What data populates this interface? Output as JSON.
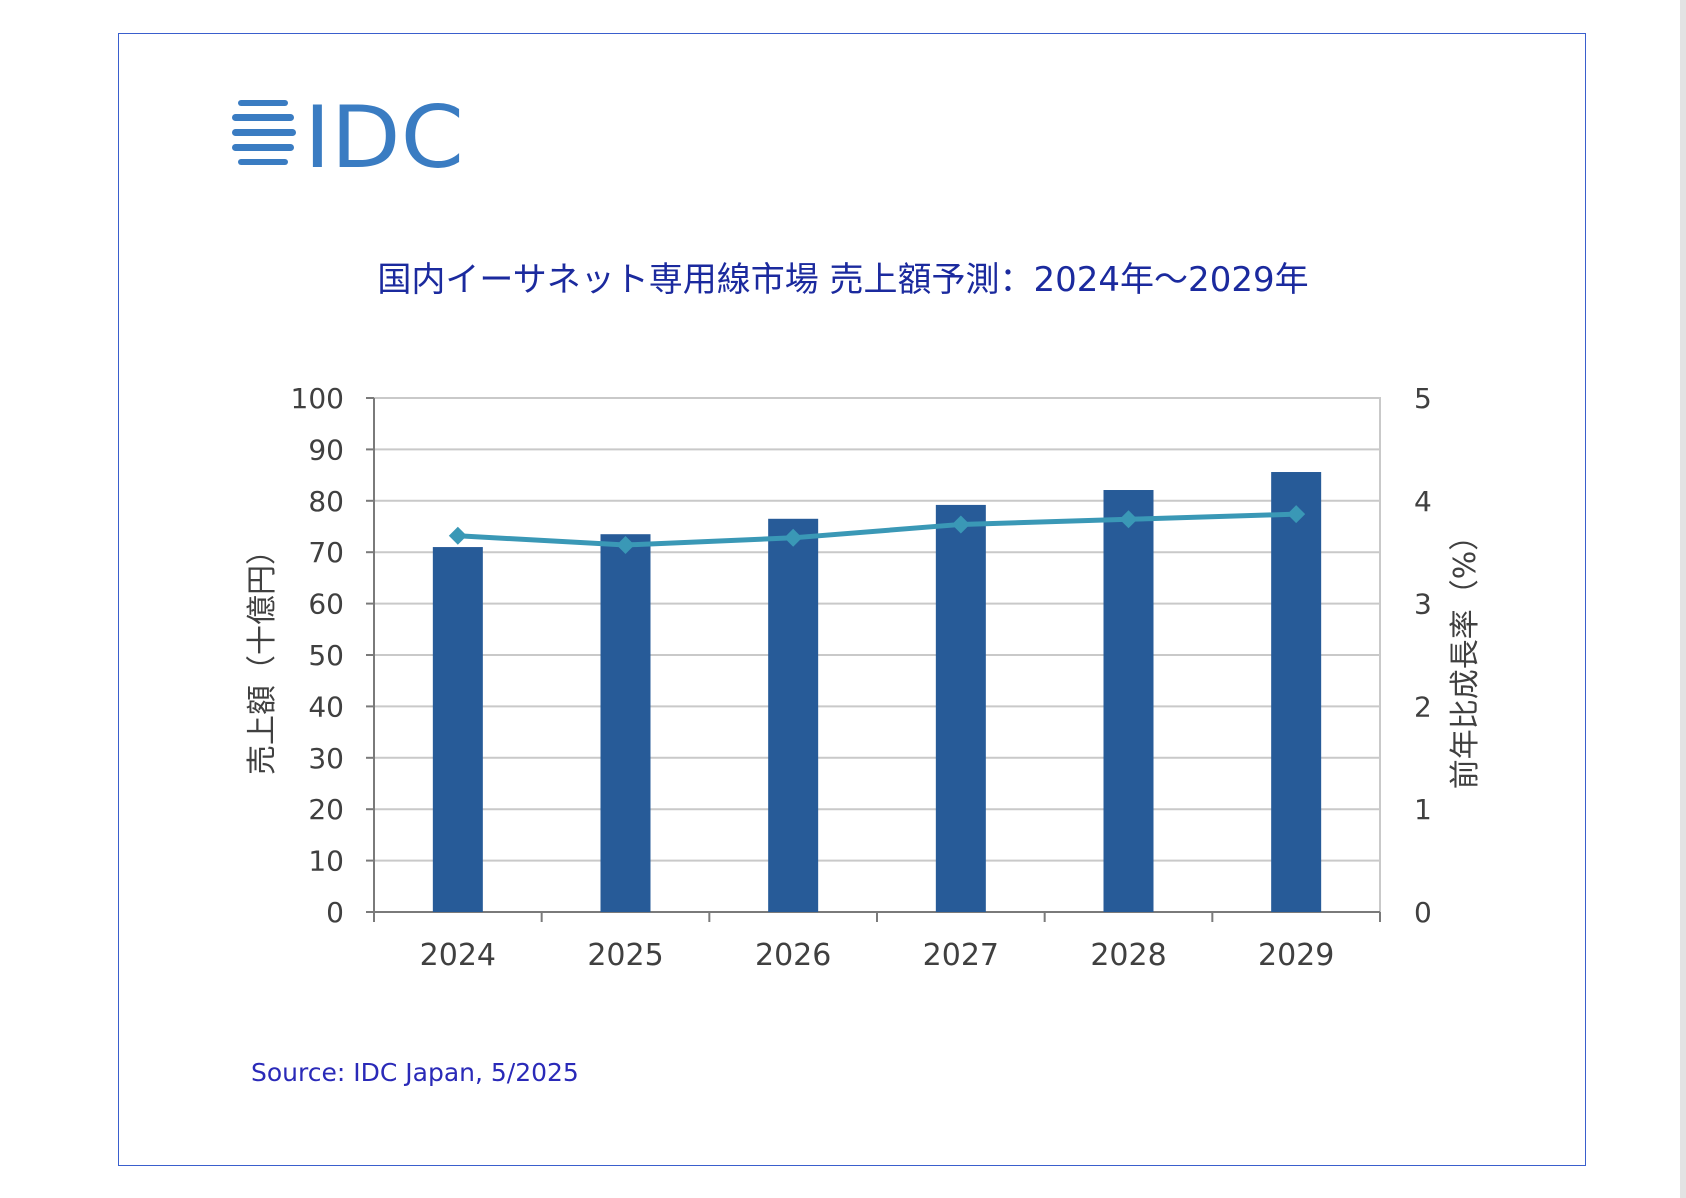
{
  "logo": {
    "text": "IDC",
    "color": "#3a7cc2"
  },
  "title": "国内イーサネット専用線市場 売上額予測：2024年～2029年",
  "source": "Source: IDC Japan, 5/2025",
  "colors": {
    "bar": "#275b98",
    "line": "#3a98b6",
    "grid": "#c9c9c9",
    "axis": "#7a7a7a",
    "tick_text": "#404040",
    "title": "#1b2a9e"
  },
  "chart_data": {
    "type": "bar",
    "categories": [
      "2024",
      "2025",
      "2026",
      "2027",
      "2028",
      "2029"
    ],
    "series": [
      {
        "values": [
          71.0,
          73.5,
          76.5,
          79.2,
          82.1,
          85.6
        ],
        "axis": "left",
        "kind": "bar"
      },
      {
        "values": [
          3.66,
          3.57,
          3.64,
          3.77,
          3.82,
          3.87
        ],
        "axis": "right",
        "kind": "line",
        "marker": "diamond"
      }
    ],
    "ylabel": "売上額（十億円）",
    "y2label": "前年比成長率（%）",
    "ylim": [
      0,
      100
    ],
    "y2lim": [
      0,
      5
    ],
    "yticks": [
      "0",
      "10",
      "20",
      "30",
      "40",
      "50",
      "60",
      "70",
      "80",
      "90",
      "100"
    ],
    "y2ticks": [
      "0",
      "1",
      "2",
      "3",
      "4",
      "5"
    ],
    "grid": true,
    "legend": "none"
  }
}
